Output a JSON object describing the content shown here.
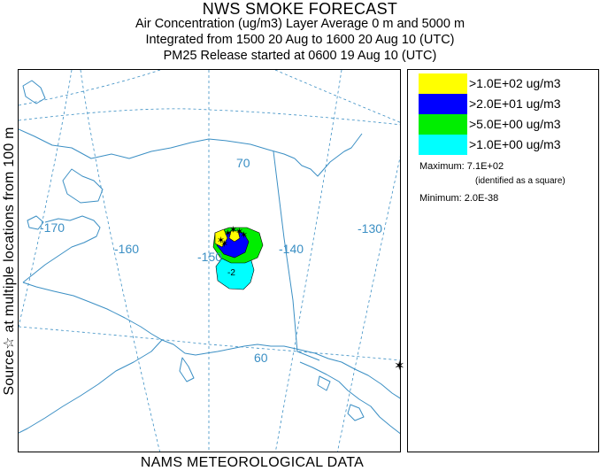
{
  "header": {
    "title": "NWS SMOKE FORECAST",
    "line2": "Air Concentration (ug/m3) Layer Average    0 m and  5000 m",
    "line3": "Integrated from 1500 20 Aug to 1600 20 Aug 10 (UTC)",
    "line4": "PM25 Release started at 0600 19 Aug 10 (UTC)"
  },
  "side_label": "Source☆ at multiple locations  from   100 m",
  "footer": "NAMS METEOROLOGICAL DATA",
  "map": {
    "lon_labels": [
      "-170",
      "-160",
      "-150",
      "-140",
      "-130"
    ],
    "lat_labels": [
      "70",
      "60"
    ]
  },
  "legend": {
    "items": [
      {
        "label": ">1.0E+02 ug/m3",
        "color": "#ffff00"
      },
      {
        "label": ">2.0E+01 ug/m3",
        "color": "#0000ff"
      },
      {
        "label": ">5.0E+00 ug/m3",
        "color": "#00ee00"
      },
      {
        "label": ">1.0E+00 ug/m3",
        "color": "#00ffff"
      }
    ],
    "maximum": "Maximum: 7.1E+02",
    "maximum_note": "(identified as a square)",
    "minimum": "Minimum: 2.0E-38"
  },
  "colors": {
    "coast": "#3b8fc4",
    "grid": "#3b8fc4",
    "plume_outline": "#000000"
  },
  "icons": [
    "star-icon",
    "source-marker-icon"
  ]
}
